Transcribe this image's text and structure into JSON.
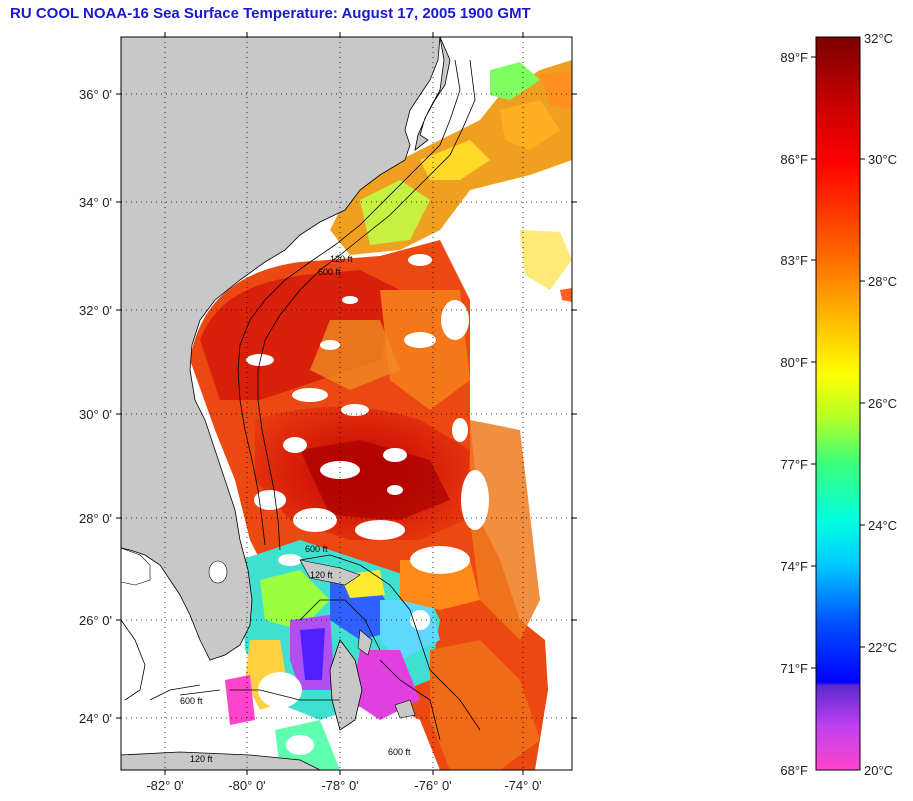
{
  "title": "RU COOL  NOAA-16  Sea Surface Temperature:  August 17, 2005 1900 GMT",
  "map": {
    "lat_labels": [
      "36° 0'",
      "34° 0'",
      "32° 0'",
      "30° 0'",
      "28° 0'",
      "26° 0'",
      "24° 0'"
    ],
    "lon_labels": [
      "-82° 0'",
      "-80° 0'",
      "-78° 0'",
      "-76° 0'",
      "-74° 0'"
    ],
    "land_color": "#c8c8c8",
    "contour_labels": [
      "600 ft",
      "120 ft",
      "600 ft",
      "120 ft",
      "600 ft",
      "600 ft",
      "120 ft"
    ]
  },
  "colorbar": {
    "fahrenheit_labels": [
      "89°F",
      "86°F",
      "83°F",
      "80°F",
      "77°F",
      "74°F",
      "71°F",
      "68°F"
    ],
    "celsius_labels": [
      "32°C",
      "30°C",
      "28°C",
      "26°C",
      "24°C",
      "22°C",
      "20°C"
    ],
    "colors": [
      "#7a0000",
      "#ff0000",
      "#ff7a00",
      "#ffff00",
      "#00ff40",
      "#00ffff",
      "#0040ff",
      "#0000ff",
      "#a040ff",
      "#ff40ff"
    ]
  }
}
